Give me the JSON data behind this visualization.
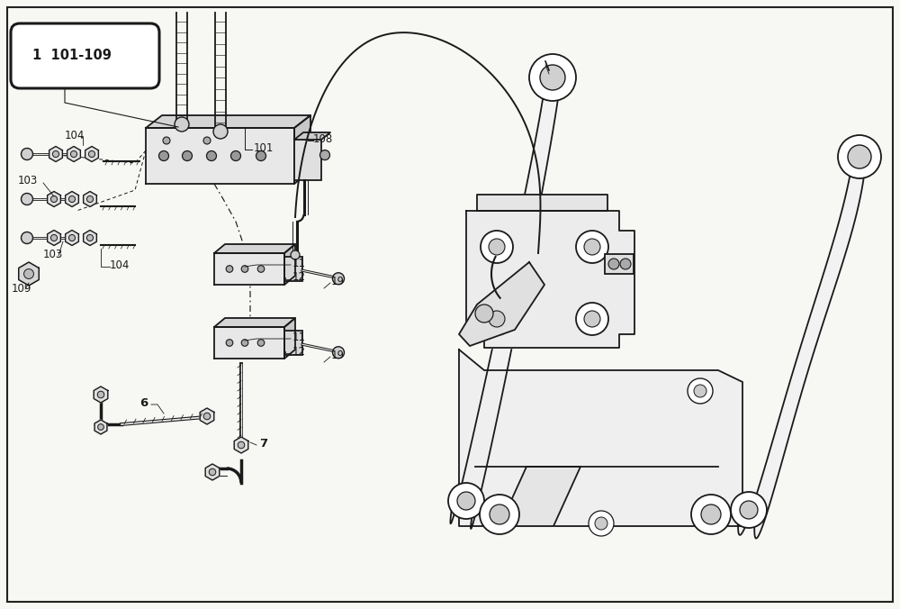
{
  "bg_color": "#f7f7f4",
  "line_color": "#1a1a1a",
  "border_color": "#222222",
  "label_badge": "1  101-109",
  "figsize": [
    10.0,
    6.76
  ],
  "dpi": 100,
  "lw_main": 1.3,
  "lw_thin": 0.8,
  "lw_thick": 2.0
}
